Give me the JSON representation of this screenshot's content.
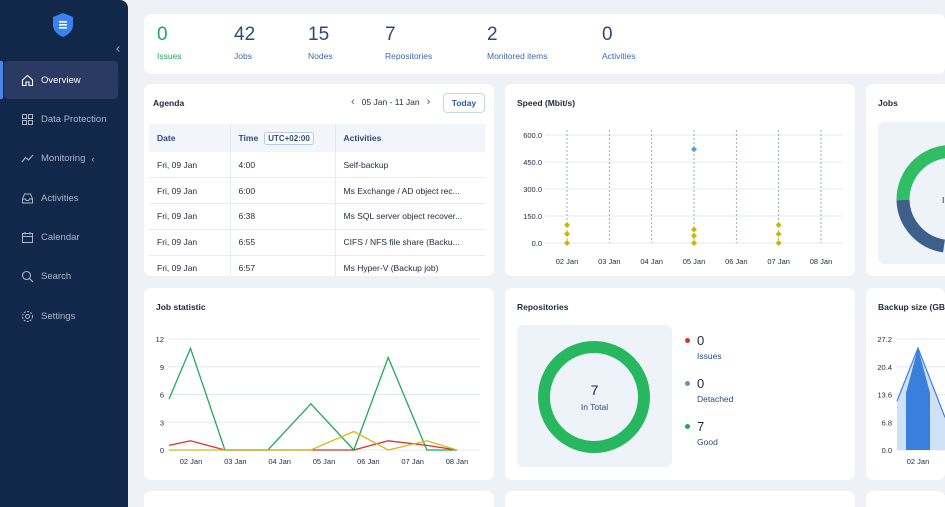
{
  "sidebar": {
    "items": [
      {
        "label": "Overview",
        "icon": "home-icon",
        "active": true
      },
      {
        "label": "Data Protection",
        "icon": "grid-icon"
      },
      {
        "label": "Monitoring",
        "icon": "trend-icon",
        "has_chevron": true
      },
      {
        "label": "Activities",
        "icon": "inbox-icon"
      },
      {
        "label": "Calendar",
        "icon": "calendar-icon"
      },
      {
        "label": "Search",
        "icon": "search-icon"
      },
      {
        "label": "Settings",
        "icon": "gear-icon"
      }
    ]
  },
  "stats": [
    {
      "value": "0",
      "label": "Issues"
    },
    {
      "value": "42",
      "label": "Jobs"
    },
    {
      "value": "15",
      "label": "Nodes"
    },
    {
      "value": "7",
      "label": "Repositories"
    },
    {
      "value": "2",
      "label": "Monitored items"
    },
    {
      "value": "0",
      "label": "Activities"
    }
  ],
  "agenda": {
    "title": "Agenda",
    "range": "05 Jan - 11 Jan",
    "today_label": "Today",
    "columns": {
      "date": "Date",
      "time": "Time",
      "timezone": "UTC+02:00",
      "activities": "Activities"
    },
    "rows": [
      {
        "date": "Fri, 09 Jan",
        "time": "4:00",
        "activity": "Self-backup"
      },
      {
        "date": "Fri, 09 Jan",
        "time": "6:00",
        "activity": "Ms Exchange / AD object rec..."
      },
      {
        "date": "Fri, 09 Jan",
        "time": "6:38",
        "activity": "Ms SQL server object recover..."
      },
      {
        "date": "Fri, 09 Jan",
        "time": "6:55",
        "activity": "CIFS / NFS file share (Backu..."
      },
      {
        "date": "Fri, 09 Jan",
        "time": "6:57",
        "activity": "Ms Hyper-V (Backup job)"
      }
    ]
  },
  "speed": {
    "title": "Speed (Mbit/s)"
  },
  "jobs": {
    "title": "Jobs",
    "center_text": "I"
  },
  "jobstat": {
    "title": "Job statistic"
  },
  "repos": {
    "title": "Repositories",
    "total": "7",
    "total_label": "In Total",
    "legend": [
      {
        "value": "0",
        "label": "Issues",
        "color": "#d0342c"
      },
      {
        "value": "0",
        "label": "Detached",
        "color": "#5b8fd6"
      },
      {
        "value": "7",
        "label": "Good",
        "color": "#22a85a"
      }
    ]
  },
  "backup": {
    "title": "Backup size (GB)"
  },
  "chart_data": [
    {
      "type": "scatter",
      "title": "Speed (Mbit/s)",
      "categories": [
        "02 Jan",
        "03 Jan",
        "04 Jan",
        "05 Jan",
        "06 Jan",
        "07 Jan",
        "08 Jan"
      ],
      "yticks": [
        "600.0",
        "450.0",
        "300.0",
        "150.0",
        "0.0"
      ],
      "ylim": [
        0,
        600
      ],
      "grid": true,
      "series": [
        {
          "color": "#c9b800",
          "points": [
            [
              "02 Jan",
              100
            ],
            [
              "02 Jan",
              50
            ],
            [
              "02 Jan",
              0
            ],
            [
              "05 Jan",
              75
            ],
            [
              "05 Jan",
              40
            ],
            [
              "05 Jan",
              0
            ],
            [
              "07 Jan",
              100
            ],
            [
              "07 Jan",
              50
            ],
            [
              "07 Jan",
              0
            ]
          ]
        },
        {
          "color": "#5b9be0",
          "points": [
            [
              "05 Jan",
              520
            ]
          ]
        }
      ]
    },
    {
      "type": "line",
      "title": "Job statistic",
      "categories": [
        "02 Jan",
        "03 Jan",
        "04 Jan",
        "05 Jan",
        "06 Jan",
        "07 Jan",
        "08 Jan"
      ],
      "x": [
        1.7,
        2.2,
        3,
        4,
        5,
        6,
        6.8,
        7.7,
        8.4
      ],
      "yticks": [
        "12",
        "9",
        "6",
        "3",
        "0"
      ],
      "ylim": [
        0,
        12
      ],
      "grid": true,
      "series": [
        {
          "color": "#22a85a",
          "values": [
            5.5,
            11,
            0,
            0,
            5,
            0,
            10,
            0,
            0
          ]
        },
        {
          "color": "#d0342c",
          "values": [
            0.5,
            1,
            0,
            0,
            0,
            0,
            1,
            0.5,
            0
          ]
        },
        {
          "color": "#d8b81a",
          "values": [
            0,
            0,
            0,
            0,
            0,
            2,
            0,
            1,
            0
          ]
        }
      ]
    },
    {
      "type": "pie",
      "title": "Repositories",
      "values": [
        0,
        0,
        7
      ],
      "labels": [
        "Issues",
        "Detached",
        "Good"
      ]
    },
    {
      "type": "area",
      "title": "Backup size (GB)",
      "categories": [
        "02 Jan"
      ],
      "yticks": [
        "27.2",
        "20.4",
        "13.6",
        "6.8",
        "0.0"
      ],
      "ylim": [
        0,
        27.2
      ]
    }
  ]
}
